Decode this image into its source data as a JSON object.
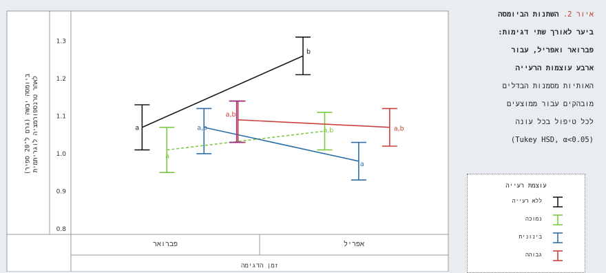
{
  "chart_data": {
    "type": "line",
    "ylabel": "ביומסה יבשה (גרם ל־20 ספיר) לאחר טרנספורמציה לוגריתמית",
    "xlabel": "זמן הדגימה",
    "categories": [
      "פברואר",
      "אפריל"
    ],
    "ylim": [
      0.8,
      1.35
    ],
    "yticks": [
      "1.3",
      "1.2",
      "1.1",
      "1.0",
      "0.9",
      "0.8"
    ],
    "grid": false,
    "series": [
      {
        "name": "ללא רעייה",
        "color": "#1a1a1a",
        "style": "solid",
        "x": [
          0.23,
          0.75
        ],
        "values": [
          1.07,
          1.26
        ],
        "err_low": [
          1.01,
          1.21
        ],
        "err_high": [
          1.13,
          1.31
        ],
        "letters": [
          "a",
          "b"
        ]
      },
      {
        "name": "נמוכה",
        "color": "#7ac943",
        "style": "dashed",
        "x": [
          0.31,
          0.82
        ],
        "values": [
          1.01,
          1.06
        ],
        "err_low": [
          0.95,
          1.01
        ],
        "err_high": [
          1.07,
          1.11
        ],
        "letters": [
          "a",
          "a,b"
        ]
      },
      {
        "name": "בינונית",
        "color": "#2e6fa7",
        "style": "solid",
        "x": [
          0.43,
          0.93
        ],
        "values": [
          1.07,
          0.98
        ],
        "err_low": [
          1.0,
          0.93
        ],
        "err_high": [
          1.12,
          1.03
        ],
        "letters": [
          "a,b",
          "a"
        ]
      },
      {
        "name": "גבוהה",
        "color": "#c9413a",
        "style": "solid",
        "x": [
          0.54,
          1.03
        ],
        "values": [
          1.09,
          1.07
        ],
        "err_low": [
          1.03,
          1.02
        ],
        "err_high": [
          1.14,
          1.12
        ],
        "letters": [
          "a,b",
          "a,b"
        ]
      }
    ],
    "extra_bar": {
      "color": "#9b2a8a",
      "x": 0.54,
      "low": 1.03,
      "high": 1.14
    }
  },
  "caption": {
    "figure_label": "איור 2.",
    "lines_bold": [
      "השתנות הביומסה",
      "ביער לאורך שתי דגימות:",
      "פברואר ואפריל, עבור",
      "ארבע עוצמות הרעייה"
    ],
    "lines": [
      "האותיות מסמנות הבדלים",
      "מובהקים עבור ממוצעים",
      "לכל טיפול בכל עונה",
      "(Tukey HSD, α<0.05)"
    ]
  },
  "legend": {
    "title": "עוצמת רעייה"
  }
}
